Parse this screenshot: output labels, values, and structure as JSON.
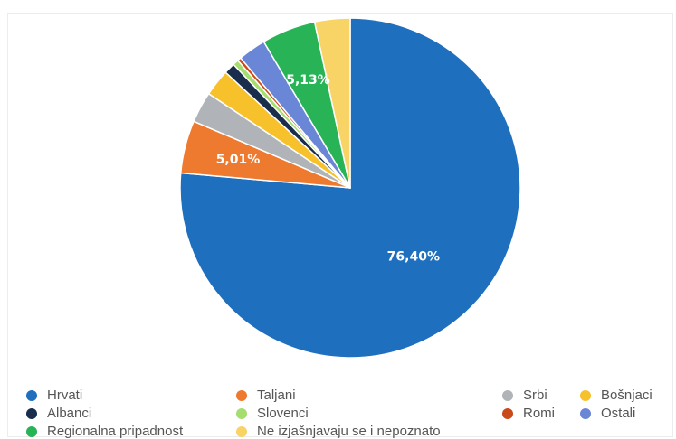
{
  "chart_data": {
    "type": "pie",
    "title": "",
    "slices": [
      {
        "name": "Hrvati",
        "value": 76.4,
        "color": "#1f6fbf",
        "label": "76,40%"
      },
      {
        "name": "Taljani",
        "value": 5.01,
        "color": "#ee7a2f",
        "label": "5,01%"
      },
      {
        "name": "Srbi",
        "value": 2.95,
        "color": "#b0b4b9",
        "label": ""
      },
      {
        "name": "Bošnjaci",
        "value": 2.55,
        "color": "#f6c12a",
        "label": ""
      },
      {
        "name": "Albanci",
        "value": 1.05,
        "color": "#1a2d4d",
        "label": ""
      },
      {
        "name": "Slovenci",
        "value": 0.55,
        "color": "#a6dd6f",
        "label": ""
      },
      {
        "name": "Romi",
        "value": 0.35,
        "color": "#c94a1a",
        "label": ""
      },
      {
        "name": "Ostali",
        "value": 2.65,
        "color": "#6a86d6",
        "label": ""
      },
      {
        "name": "Regionalna pripadnost",
        "value": 5.13,
        "color": "#29b357",
        "label": "5,13%"
      },
      {
        "name": "Ne izjašnjavaju se i nepoznato",
        "value": 3.36,
        "color": "#f8d365",
        "label": ""
      }
    ],
    "legend_position": "bottom"
  }
}
